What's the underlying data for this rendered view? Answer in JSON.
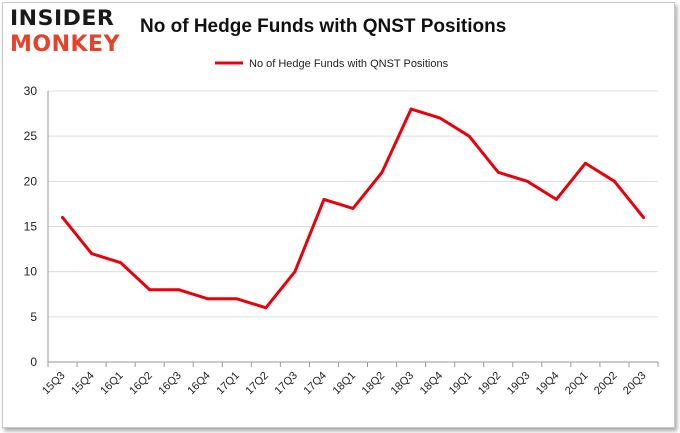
{
  "logo": {
    "line1": "INSIDER",
    "line2": "MONKEY"
  },
  "chart_data": {
    "type": "line",
    "title": "No of Hedge Funds with QNST Positions",
    "xlabel": "",
    "ylabel": "",
    "ylim": [
      0,
      30
    ],
    "yticks": [
      0,
      5,
      10,
      15,
      20,
      25,
      30
    ],
    "grid": true,
    "legend_position": "top-center",
    "categories": [
      "15Q3",
      "15Q4",
      "16Q1",
      "16Q2",
      "16Q3",
      "16Q4",
      "17Q1",
      "17Q2",
      "17Q3",
      "17Q4",
      "18Q1",
      "18Q2",
      "18Q3",
      "18Q4",
      "19Q1",
      "19Q2",
      "19Q3",
      "19Q4",
      "20Q1",
      "20Q2",
      "20Q3"
    ],
    "series": [
      {
        "name": "No of Hedge Funds with QNST Positions",
        "color": "#e8000b",
        "values": [
          16,
          12,
          11,
          8,
          8,
          7,
          7,
          6,
          10,
          18,
          17,
          21,
          28,
          27,
          25,
          21,
          20,
          18,
          22,
          20,
          16
        ]
      }
    ]
  }
}
